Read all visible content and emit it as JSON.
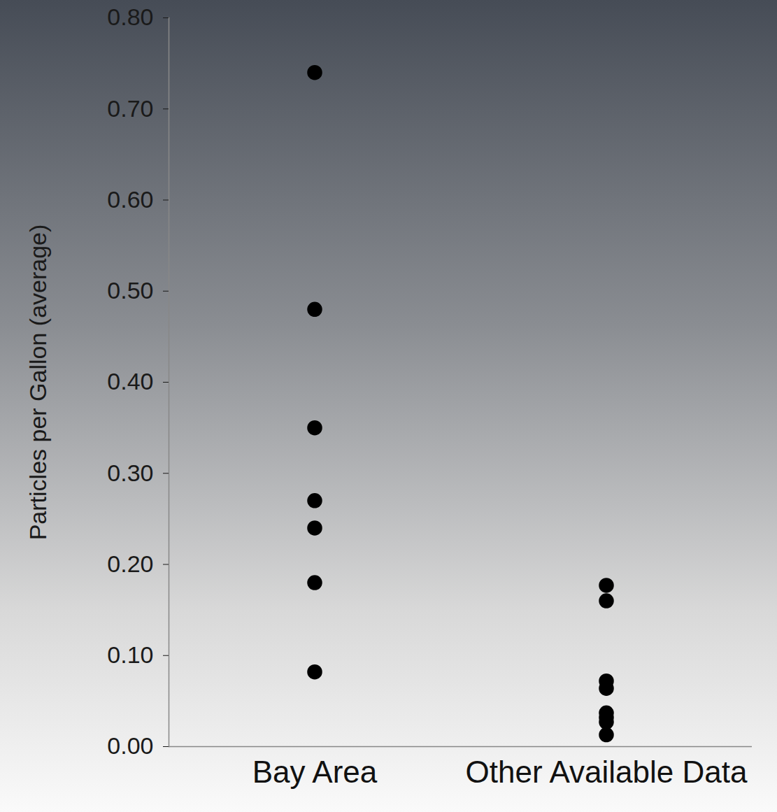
{
  "chart_data": {
    "type": "strip",
    "y_label": "Particles per Gallon (average)",
    "categories": [
      "Bay Area",
      "Other Available Data"
    ],
    "values": [
      [
        0.74,
        0.48,
        0.35,
        0.27,
        0.24,
        0.18,
        0.082
      ],
      [
        0.177,
        0.16,
        0.072,
        0.064,
        0.037,
        0.032,
        0.027,
        0.013
      ]
    ],
    "color": "#000000",
    "marker": "circle",
    "ylim": [
      0,
      0.8
    ],
    "yticks": [
      {
        "value": 0,
        "label": "0.00"
      },
      {
        "value": 0.1,
        "label": "0.10"
      },
      {
        "value": 0.2,
        "label": "0.20"
      },
      {
        "value": 0.3,
        "label": "0.30"
      },
      {
        "value": 0.4,
        "label": "0.40"
      },
      {
        "value": 0.5,
        "label": "0.50"
      },
      {
        "value": 0.6,
        "label": "0.60"
      },
      {
        "value": 0.7,
        "label": "0.70"
      },
      {
        "value": 0.8,
        "label": "0.80"
      }
    ],
    "grid": false
  }
}
